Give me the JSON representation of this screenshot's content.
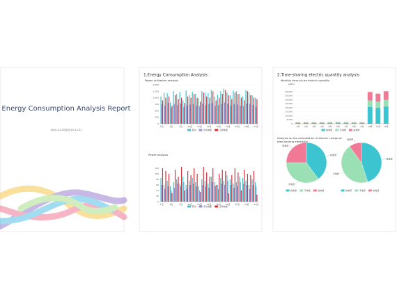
{
  "cover": {
    "title": "Energy Consumption Analysis Report",
    "date": "2019-12-01至2019-12-31"
  },
  "sections": [
    {
      "title": "1.Energy Consumption Analysis"
    },
    {
      "title": "2.Time-sharing electric quantity analysis"
    }
  ],
  "chart_data": [
    {
      "type": "bar",
      "title": "Power utilization analysis",
      "categories": [
        "1日",
        null,
        null,
        "4日",
        null,
        null,
        "7日",
        null,
        null,
        "10日",
        null,
        null,
        "13日",
        null,
        null,
        "16日",
        null,
        null,
        "19日",
        null,
        null,
        "22日",
        null,
        null,
        "25日",
        null,
        null,
        "28日",
        null,
        null,
        "31日"
      ],
      "series": [
        {
          "name": "有功",
          "color": "#3cc4d0",
          "values": [
            1050,
            1200,
            1180,
            820,
            1250,
            1150,
            1220,
            900,
            1280,
            1100,
            1230,
            1150,
            980,
            1260,
            1200,
            1180,
            1300,
            1050,
            1120,
            1250,
            1350,
            1200,
            1100,
            1280,
            1250,
            1150,
            1050,
            1300,
            1220,
            1100,
            1000
          ]
        },
        {
          "name": "无功电量",
          "color": "#9b8fd8",
          "values": [
            750,
            700,
            800,
            620,
            760,
            720,
            780,
            650,
            700,
            740,
            760,
            700,
            680,
            780,
            720,
            760,
            800,
            690,
            720,
            760,
            820,
            780,
            700,
            760,
            740,
            700,
            680,
            780,
            760,
            720,
            650
          ]
        },
        {
          "name": "上网电量",
          "color": "#d6303a",
          "values": [
            900,
            1000,
            1050,
            700,
            1100,
            950,
            1000,
            800,
            1050,
            1000,
            1150,
            1000,
            850,
            1200,
            1050,
            1000,
            1250,
            900,
            1000,
            1150,
            1300,
            1100,
            950,
            1200,
            1150,
            1000,
            900,
            1250,
            1100,
            1000,
            950
          ]
        }
      ],
      "ylim": [
        0,
        1500
      ],
      "yticks": [
        0,
        250,
        500,
        750,
        {
          "value": 1000,
          "label": "1,000"
        },
        {
          "value": 1250,
          "label": "1,250"
        },
        {
          "value": 1500,
          "label": "1,500"
        }
      ],
      "grid": true
    },
    {
      "type": "bar",
      "title": "Power analysis",
      "categories": [
        "1日",
        null,
        null,
        "4日",
        null,
        null,
        "7日",
        null,
        null,
        "10日",
        null,
        null,
        "13日",
        null,
        null,
        "16日",
        null,
        null,
        "19日",
        null,
        null,
        "22日",
        null,
        null,
        "25日",
        null,
        null,
        "28日",
        null,
        null,
        "31日"
      ],
      "series": [
        {
          "name": "有功",
          "color": "#3cc4d0",
          "values": [
            85,
            60,
            75,
            55,
            70,
            80,
            65,
            90,
            60,
            75,
            85,
            70,
            55,
            80,
            75,
            65,
            90,
            70,
            60,
            85,
            75,
            95,
            80,
            65,
            70,
            90,
            85,
            75,
            60,
            80,
            70
          ]
        },
        {
          "name": "无功电量",
          "color": "#9b8fd8",
          "values": [
            60,
            45,
            55,
            40,
            50,
            65,
            55,
            70,
            45,
            60,
            65,
            55,
            40,
            60,
            55,
            50,
            70,
            55,
            45,
            65,
            60,
            75,
            60,
            50,
            55,
            70,
            65,
            60,
            45,
            60,
            55
          ]
        },
        {
          "name": "上网电量",
          "color": "#d6303a",
          "values": [
            120,
            110,
            100,
            30,
            115,
            90,
            125,
            40,
            110,
            95,
            120,
            100,
            35,
            125,
            105,
            90,
            120,
            60,
            100,
            115,
            110,
            30,
            95,
            120,
            105,
            40,
            115,
            100,
            95,
            110,
            25
          ]
        }
      ],
      "ylim": [
        0,
        130
      ],
      "yticks": [
        0,
        20,
        40,
        60,
        80,
        100,
        120
      ],
      "grid": true
    },
    {
      "type": "stacked_bar",
      "title": "Monthly time-of-use electric quantity",
      "unit": "(kWh)",
      "categories": [
        "1月",
        "2月",
        "3月",
        "4月",
        "5月",
        "6月",
        "7月",
        "8月",
        "9月",
        "10月",
        "11月",
        "12月"
      ],
      "series": [
        {
          "name": "峰电量",
          "color": "#3cc4d0",
          "values": [
            900,
            850,
            920,
            880,
            950,
            1000,
            980,
            940,
            900,
            21000,
            20000,
            21500
          ]
        },
        {
          "name": "平电量",
          "color": "#9be0b4",
          "values": [
            600,
            580,
            620,
            600,
            640,
            660,
            650,
            630,
            610,
            8000,
            7500,
            8200
          ]
        },
        {
          "name": "谷电量",
          "color": "#f07a96",
          "values": [
            500,
            480,
            520,
            500,
            530,
            550,
            540,
            520,
            510,
            10500,
            10000,
            10800
          ]
        }
      ],
      "ylim": [
        0,
        45000
      ],
      "yticks": [
        0,
        {
          "value": 5000,
          "label": "5,000"
        },
        {
          "value": 10000,
          "label": "10,000"
        },
        {
          "value": 15000,
          "label": "15,000"
        },
        {
          "value": 20000,
          "label": "20,000"
        },
        {
          "value": 25000,
          "label": "25,000"
        },
        {
          "value": 30000,
          "label": "30,000"
        },
        {
          "value": 35000,
          "label": "35,000"
        },
        {
          "value": 40000,
          "label": "40,000"
        }
      ],
      "grid": true
    },
    {
      "type": "pie",
      "title": "Analysis on the composition of electric charge of time-sharing electricity",
      "categories": [
        "峰电费",
        "平电费",
        "谷电费"
      ],
      "colors": [
        "#3cc4d0",
        "#9be0b4",
        "#f07a96"
      ],
      "values": [
        40,
        35,
        25
      ]
    },
    {
      "type": "pie",
      "categories": [
        "峰电费",
        "平电费",
        "谷电费"
      ],
      "colors": [
        "#3cc4d0",
        "#9be0b4",
        "#f07a96"
      ],
      "values": [
        45,
        45,
        10
      ]
    }
  ]
}
